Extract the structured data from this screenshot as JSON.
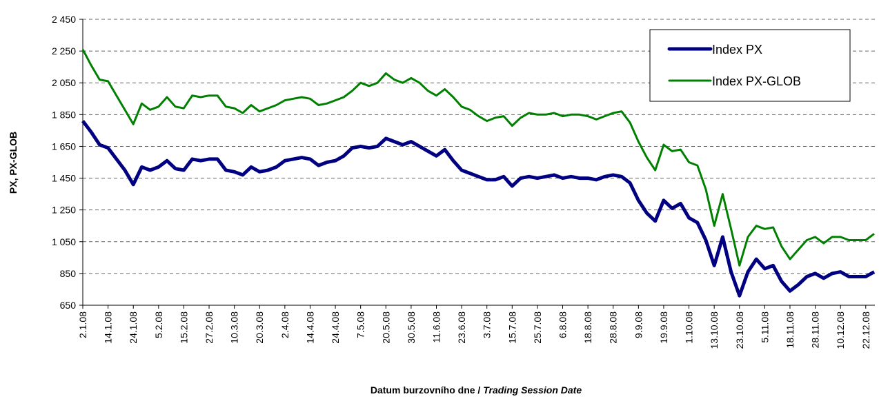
{
  "chart_data": {
    "type": "line",
    "ylabel": "PX, PX-GLOB",
    "xlabel": {
      "cz": "Datum burzovního dne /",
      "en": "Trading Session Date"
    },
    "ylim": [
      650,
      2450
    ],
    "yticks": [
      650,
      850,
      {
        "value": 1050,
        "label": "1 050"
      },
      {
        "value": 1250,
        "label": "1 250"
      },
      {
        "value": 1450,
        "label": "1 450"
      },
      {
        "value": 1650,
        "label": "1 650"
      },
      {
        "value": 1850,
        "label": "1 850"
      },
      {
        "value": 2050,
        "label": "2 050"
      },
      {
        "value": 2250,
        "label": "2 250"
      },
      {
        "value": 2450,
        "label": "2 450"
      }
    ],
    "grid": true,
    "legend": "top-right",
    "categories": [
      "2.1.08",
      null,
      null,
      "14.1.08",
      null,
      null,
      "24.1.08",
      null,
      null,
      "5.2.08",
      null,
      null,
      "15.2.08",
      null,
      null,
      "27.2.08",
      null,
      null,
      "10.3.08",
      null,
      null,
      "20.3.08",
      null,
      null,
      "2.4.08",
      null,
      null,
      "14.4.08",
      null,
      null,
      "24.4.08",
      null,
      null,
      "7.5.08",
      null,
      null,
      "20.5.08",
      null,
      null,
      "30.5.08",
      null,
      null,
      "11.6.08",
      null,
      null,
      "23.6.08",
      null,
      null,
      "3.7.08",
      null,
      null,
      "15.7.08",
      null,
      null,
      "25.7.08",
      null,
      null,
      "6.8.08",
      null,
      null,
      "18.8.08",
      null,
      null,
      "28.8.08",
      null,
      null,
      "9.9.08",
      null,
      null,
      "19.9.08",
      null,
      null,
      "1.10.08",
      null,
      null,
      "13.10.08",
      null,
      null,
      "23.10.08",
      null,
      null,
      "5.11.08",
      null,
      null,
      "18.11.08",
      null,
      null,
      "28.11.08",
      null,
      null,
      "10.12.08",
      null,
      null,
      "22.12.08",
      null
    ],
    "series": [
      {
        "name": "Index PX",
        "color": "#000080",
        "values": [
          1810,
          1740,
          1660,
          1640,
          1570,
          1500,
          1410,
          1520,
          1500,
          1520,
          1560,
          1510,
          1500,
          1570,
          1560,
          1570,
          1570,
          1500,
          1490,
          1470,
          1520,
          1490,
          1500,
          1520,
          1560,
          1570,
          1580,
          1570,
          1530,
          1550,
          1560,
          1590,
          1640,
          1650,
          1640,
          1650,
          1700,
          1680,
          1660,
          1680,
          1650,
          1620,
          1590,
          1630,
          1560,
          1500,
          1480,
          1460,
          1440,
          1440,
          1460,
          1400,
          1450,
          1460,
          1450,
          1460,
          1470,
          1450,
          1460,
          1450,
          1450,
          1440,
          1460,
          1470,
          1460,
          1420,
          1310,
          1230,
          1180,
          1310,
          1260,
          1290,
          1200,
          1170,
          1060,
          900,
          1080,
          860,
          710,
          860,
          940,
          880,
          900,
          800,
          740,
          780,
          830,
          850,
          820,
          850,
          860,
          830,
          830,
          830,
          860
        ]
      },
      {
        "name": "Index PX-GLOB",
        "color": "#008000",
        "values": [
          2260,
          2160,
          2070,
          2060,
          1970,
          1880,
          1790,
          1920,
          1880,
          1900,
          1960,
          1900,
          1890,
          1970,
          1960,
          1970,
          1970,
          1900,
          1890,
          1860,
          1910,
          1870,
          1890,
          1910,
          1940,
          1950,
          1960,
          1950,
          1910,
          1920,
          1940,
          1960,
          2000,
          2050,
          2030,
          2050,
          2110,
          2070,
          2050,
          2080,
          2050,
          2000,
          1970,
          2010,
          1960,
          1900,
          1880,
          1840,
          1810,
          1830,
          1840,
          1780,
          1830,
          1860,
          1850,
          1850,
          1860,
          1840,
          1850,
          1850,
          1840,
          1820,
          1840,
          1860,
          1870,
          1800,
          1680,
          1580,
          1500,
          1660,
          1620,
          1630,
          1550,
          1530,
          1380,
          1150,
          1350,
          1130,
          900,
          1080,
          1150,
          1130,
          1140,
          1020,
          940,
          1000,
          1060,
          1080,
          1040,
          1080,
          1080,
          1060,
          1060,
          1060,
          1100
        ]
      }
    ]
  }
}
